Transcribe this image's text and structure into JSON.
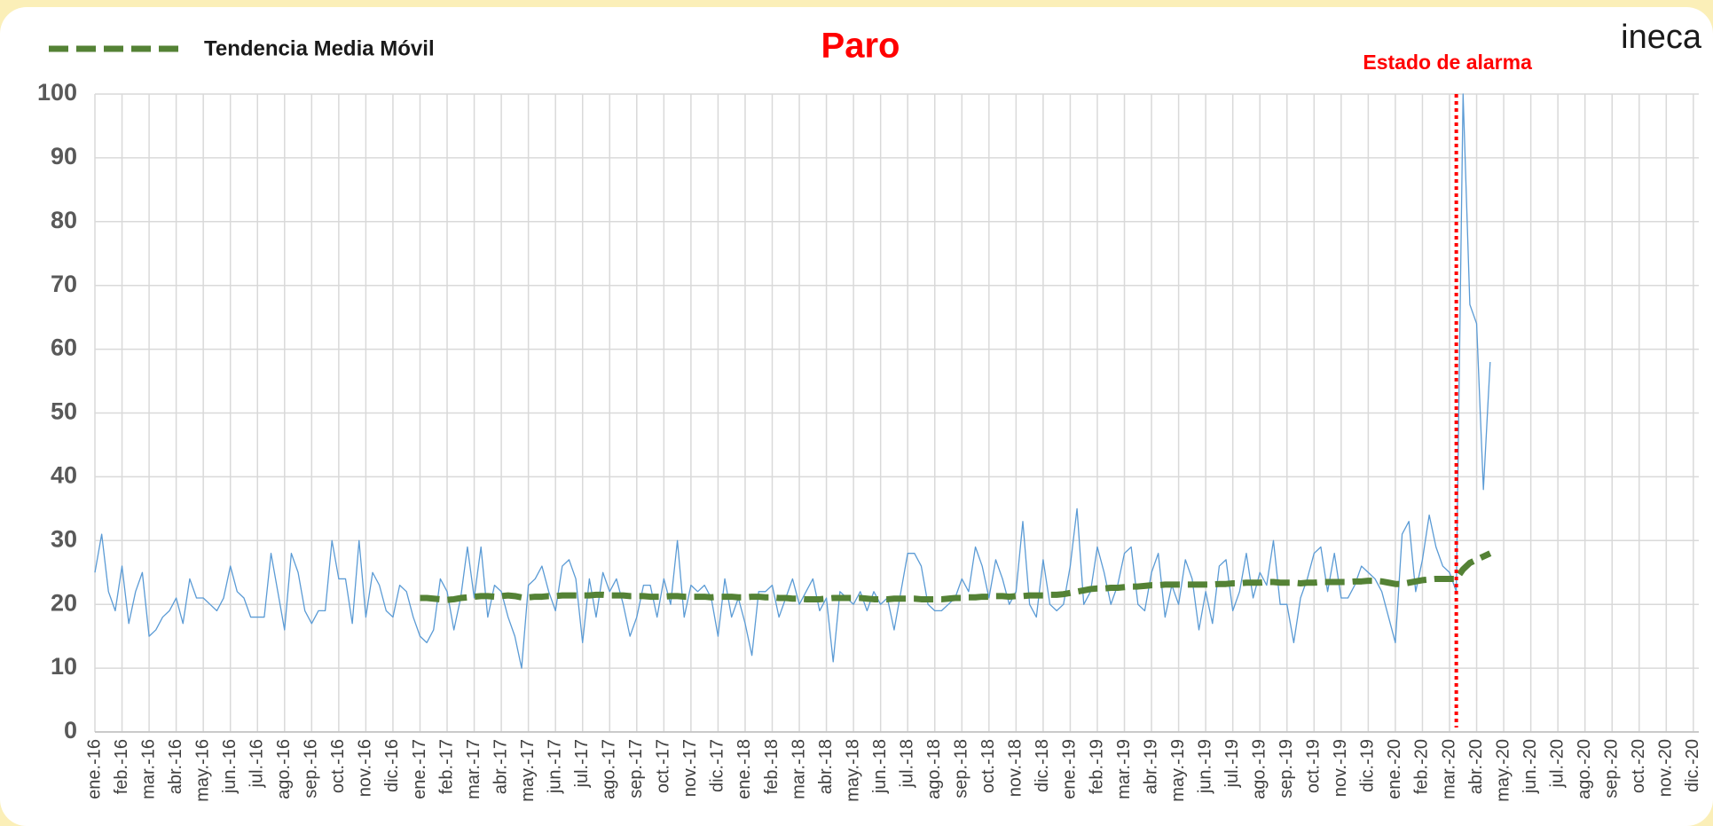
{
  "chart_data": {
    "type": "line",
    "title": "Paro",
    "logo": "ineca",
    "categories": [
      "ene.-16",
      null,
      null,
      null,
      "feb.-16",
      null,
      null,
      null,
      "mar.-16",
      null,
      null,
      null,
      "abr.-16",
      null,
      null,
      null,
      "may.-16",
      null,
      null,
      null,
      "jun.-16",
      null,
      null,
      null,
      "jul.-16",
      null,
      null,
      null,
      "ago.-16",
      null,
      null,
      null,
      "sep.-16",
      null,
      null,
      null,
      "oct.-16",
      null,
      null,
      null,
      "nov.-16",
      null,
      null,
      null,
      "dic.-16",
      null,
      null,
      null,
      "ene.-17",
      null,
      null,
      null,
      "feb.-17",
      null,
      null,
      null,
      "mar.-17",
      null,
      null,
      null,
      "abr.-17",
      null,
      null,
      null,
      "may.-17",
      null,
      null,
      null,
      "jun.-17",
      null,
      null,
      null,
      "jul.-17",
      null,
      null,
      null,
      "ago.-17",
      null,
      null,
      null,
      "sep.-17",
      null,
      null,
      null,
      "oct.-17",
      null,
      null,
      null,
      "nov.-17",
      null,
      null,
      null,
      "dic.-17",
      null,
      null,
      null,
      "ene.-18",
      null,
      null,
      null,
      "feb.-18",
      null,
      null,
      null,
      "mar.-18",
      null,
      null,
      null,
      "abr.-18",
      null,
      null,
      null,
      "may.-18",
      null,
      null,
      null,
      "jun.-18",
      null,
      null,
      null,
      "jul.-18",
      null,
      null,
      null,
      "ago.-18",
      null,
      null,
      null,
      "sep.-18",
      null,
      null,
      null,
      "oct.-18",
      null,
      null,
      null,
      "nov.-18",
      null,
      null,
      null,
      "dic.-18",
      null,
      null,
      null,
      "ene.-19",
      null,
      null,
      null,
      "feb.-19",
      null,
      null,
      null,
      "mar.-19",
      null,
      null,
      null,
      "abr.-19",
      null,
      null,
      null,
      "may.-19",
      null,
      null,
      null,
      "jun.-19",
      null,
      null,
      null,
      "jul.-19",
      null,
      null,
      null,
      "ago.-19",
      null,
      null,
      null,
      "sep.-19",
      null,
      null,
      null,
      "oct.-19",
      null,
      null,
      null,
      "nov.-19",
      null,
      null,
      null,
      "dic.-19",
      null,
      null,
      null,
      "ene.-20",
      null,
      null,
      null,
      "feb.-20",
      null,
      null,
      null,
      "mar.-20",
      null,
      null,
      null,
      "abr.-20",
      null,
      null,
      null,
      "may.-20",
      null,
      null,
      null,
      "jun.-20",
      null,
      null,
      null,
      "jul.-20",
      null,
      null,
      null,
      "ago.-20",
      null,
      null,
      null,
      "sep.-20",
      null,
      null,
      null,
      "oct.-20",
      null,
      null,
      null,
      "nov.-20",
      null,
      null,
      null,
      "dic.-20",
      null,
      null,
      null
    ],
    "series": [
      {
        "color": "#5b9bd5",
        "values": [
          25,
          31,
          22,
          19,
          26,
          17,
          22,
          25,
          15,
          16,
          18,
          19,
          21,
          17,
          24,
          21,
          21,
          20,
          19,
          21,
          26,
          22,
          21,
          18,
          18,
          18,
          28,
          22,
          16,
          28,
          25,
          19,
          17,
          19,
          19,
          30,
          24,
          24,
          17,
          30,
          18,
          25,
          23,
          19,
          18,
          23,
          22,
          18,
          15,
          14,
          16,
          24,
          22,
          16,
          21,
          29,
          21,
          29,
          18,
          23,
          22,
          18,
          15,
          10,
          23,
          24,
          26,
          22,
          19,
          26,
          27,
          24,
          14,
          24,
          18,
          25,
          22,
          24,
          20,
          15,
          18,
          23,
          23,
          18,
          24,
          20,
          30,
          18,
          23,
          22,
          23,
          21,
          15,
          24,
          18,
          21,
          17,
          12,
          22,
          22,
          23,
          18,
          21,
          24,
          20,
          22,
          24,
          19,
          21,
          11,
          22,
          21,
          20,
          22,
          19,
          22,
          20,
          21,
          16,
          22,
          28,
          28,
          26,
          20,
          19,
          19,
          20,
          21,
          24,
          22,
          29,
          26,
          21,
          27,
          24,
          20,
          22,
          33,
          20,
          18,
          27,
          20,
          19,
          20,
          26,
          35,
          20,
          22,
          29,
          25,
          20,
          23,
          28,
          29,
          20,
          19,
          25,
          28,
          18,
          23,
          20,
          27,
          24,
          16,
          22,
          17,
          26,
          27,
          19,
          22,
          28,
          21,
          25,
          23,
          30,
          20,
          20,
          14,
          21,
          24,
          28,
          29,
          22,
          28,
          21,
          21,
          23,
          26,
          25,
          24,
          22,
          18,
          14,
          31,
          33,
          22,
          27,
          34,
          29,
          26,
          25,
          22,
          100,
          67,
          64,
          38,
          58,
          null,
          null,
          null,
          null,
          null,
          null,
          null,
          null,
          null,
          null,
          null,
          null,
          null,
          null,
          null,
          null,
          null,
          null,
          null,
          null,
          null,
          null,
          null,
          null,
          null,
          null,
          null,
          null,
          null,
          null,
          null,
          null,
          null
        ]
      },
      {
        "name": "Tendencia Media Móvil",
        "color": "#548235",
        "dashed": true,
        "values": [
          null,
          null,
          null,
          null,
          null,
          null,
          null,
          null,
          null,
          null,
          null,
          null,
          null,
          null,
          null,
          null,
          null,
          null,
          null,
          null,
          null,
          null,
          null,
          null,
          null,
          null,
          null,
          null,
          null,
          null,
          null,
          null,
          null,
          null,
          null,
          null,
          null,
          null,
          null,
          null,
          null,
          null,
          null,
          null,
          null,
          null,
          null,
          null,
          21,
          21,
          20.9,
          20.8,
          20.7,
          20.8,
          21,
          21.1,
          21.2,
          21.3,
          21.3,
          21.2,
          21.3,
          21.4,
          21.3,
          21.1,
          21.1,
          21.2,
          21.2,
          21.3,
          21.3,
          21.4,
          21.4,
          21.4,
          21.4,
          21.4,
          21.5,
          21.5,
          21.4,
          21.4,
          21.4,
          21.3,
          21.3,
          21.3,
          21.2,
          21.2,
          21.2,
          21.3,
          21.3,
          21.2,
          21.2,
          21.2,
          21.2,
          21.1,
          21.2,
          21.2,
          21.2,
          21.1,
          21.1,
          21.2,
          21.2,
          21.1,
          21.1,
          21,
          21,
          20.9,
          20.9,
          20.8,
          20.8,
          20.8,
          20.9,
          21,
          21,
          21,
          21,
          21,
          20.9,
          20.8,
          20.8,
          20.8,
          20.9,
          20.9,
          20.9,
          20.9,
          20.8,
          20.8,
          20.8,
          20.8,
          20.9,
          21,
          21,
          21.1,
          21.1,
          21.2,
          21.2,
          21.3,
          21.3,
          21.2,
          21.3,
          21.3,
          21.4,
          21.4,
          21.4,
          21.5,
          21.5,
          21.6,
          21.8,
          22,
          22.2,
          22.4,
          22.5,
          22.5,
          22.6,
          22.6,
          22.7,
          22.8,
          22.8,
          22.9,
          23,
          23,
          23.1,
          23.1,
          23.1,
          23.1,
          23.1,
          23.1,
          23.1,
          23.1,
          23.2,
          23.2,
          23.3,
          23.3,
          23.4,
          23.4,
          23.4,
          23.5,
          23.5,
          23.4,
          23.4,
          23.4,
          23.3,
          23.4,
          23.4,
          23.5,
          23.5,
          23.5,
          23.5,
          23.5,
          23.6,
          23.6,
          23.7,
          23.7,
          23.6,
          23.4,
          23.2,
          23.2,
          23.4,
          23.6,
          23.8,
          23.9,
          24,
          24,
          24,
          24,
          25.5,
          26.5,
          27,
          27.5,
          28,
          null,
          null,
          null,
          null,
          null,
          null,
          null,
          null,
          null,
          null,
          null,
          null,
          null,
          null,
          null,
          null,
          null,
          null,
          null,
          null,
          null,
          null,
          null,
          null,
          null,
          null,
          null,
          null,
          null,
          null,
          null,
          null,
          null
        ]
      }
    ],
    "annotation": {
      "text": "Estado de alarma",
      "x": 201,
      "color": "#ff0000"
    },
    "ylim": [
      0,
      100
    ],
    "yticks": [
      0,
      10,
      20,
      30,
      40,
      50,
      60,
      70,
      80,
      90,
      100
    ],
    "grid": true,
    "legend": "top-left"
  }
}
